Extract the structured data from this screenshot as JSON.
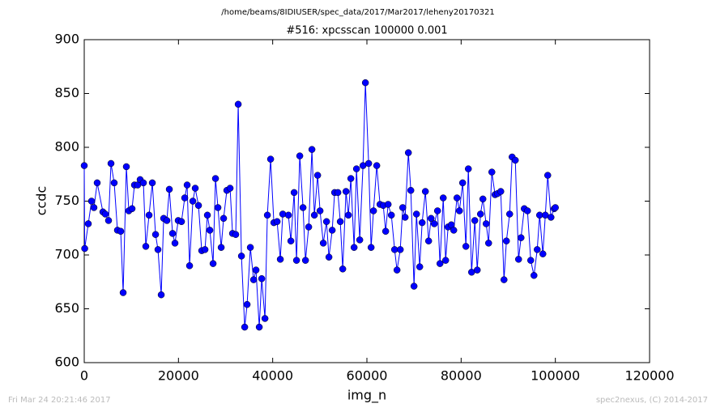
{
  "chart_data": {
    "type": "line",
    "suptitle": "/home/beams/8IDIUSER/spec_data/2017/Mar2017/leheny20170321",
    "title": "#516: xpcsscan 100000 0.001",
    "xlabel": "img_n",
    "ylabel": "ccdc",
    "footer_left": "Fri Mar 24 20:21:46 2017",
    "footer_right": "spec2nexus, (C) 2014-2017",
    "xlim": [
      0,
      120000
    ],
    "xticks": [
      0,
      20000,
      40000,
      60000,
      80000,
      100000,
      120000
    ],
    "ylim": [
      600,
      900
    ],
    "yticks": [
      600,
      650,
      700,
      750,
      800,
      850,
      900
    ],
    "grid": false,
    "x": [
      0,
      100,
      860,
      1550,
      2060,
      2750,
      3960,
      4470,
      5160,
      5680,
      6360,
      7050,
      7740,
      8260,
      8940,
      9460,
      10150,
      10660,
      11350,
      11870,
      12560,
      13070,
      13760,
      14450,
      15140,
      15650,
      16340,
      16860,
      17540,
      18060,
      18750,
      19260,
      19950,
      20640,
      21330,
      21840,
      22360,
      23050,
      23560,
      24250,
      24940,
      25630,
      26140,
      26660,
      27350,
      27860,
      28380,
      29070,
      29580,
      30270,
      30960,
      31480,
      32160,
      32680,
      33370,
      34060,
      34570,
      35260,
      35950,
      36460,
      37150,
      37670,
      38360,
      38870,
      39560,
      40250,
      40940,
      41620,
      42140,
      43340,
      43860,
      44550,
      45060,
      45750,
      46440,
      46960,
      47640,
      48330,
      48850,
      49540,
      50050,
      50740,
      51430,
      51940,
      52630,
      53150,
      53840,
      54350,
      54870,
      55560,
      56070,
      56590,
      57280,
      57790,
      58480,
      59170,
      59680,
      60370,
      60890,
      61400,
      62090,
      62780,
      63470,
      63980,
      64500,
      65190,
      65880,
      66390,
      67080,
      67600,
      68110,
      68800,
      69320,
      70000,
      70520,
      71210,
      71720,
      72410,
      73100,
      73620,
      74300,
      74990,
      75510,
      76200,
      76710,
      77230,
      77920,
      78430,
      79120,
      79640,
      80320,
      81010,
      81530,
      82220,
      82900,
      83420,
      84110,
      84620,
      85310,
      85830,
      86520,
      87200,
      87720,
      88410,
      89100,
      89610,
      90300,
      90820,
      91500,
      92190,
      92710,
      93400,
      94080,
      94770,
      95460,
      96150,
      96660,
      97350,
      97870,
      98380,
      99070,
      99760,
      100000
    ],
    "series": [
      {
        "name": "ccdc",
        "color": "#0000ff",
        "values": [
          783,
          706,
          729,
          750,
          744,
          767,
          740,
          738,
          732,
          785,
          767,
          723,
          722,
          665,
          782,
          741,
          743,
          765,
          765,
          770,
          767,
          708,
          737,
          767,
          719,
          705,
          663,
          734,
          732,
          761,
          720,
          711,
          732,
          731,
          753,
          765,
          690,
          750,
          762,
          746,
          704,
          705,
          737,
          723,
          692,
          771,
          744,
          707,
          734,
          760,
          762,
          720,
          719,
          840,
          699,
          633,
          654,
          707,
          677,
          686,
          633,
          678,
          641,
          737,
          789,
          730,
          731,
          696,
          738,
          737,
          713,
          758,
          695,
          792,
          744,
          695,
          726,
          798,
          737,
          774,
          741,
          711,
          731,
          698,
          723,
          758,
          758,
          731,
          687,
          759,
          737,
          771,
          707,
          780,
          714,
          783,
          860,
          785,
          707,
          741,
          783,
          747,
          746,
          722,
          747,
          737,
          705,
          686,
          705,
          744,
          735,
          795,
          760,
          671,
          738,
          689,
          730,
          759,
          713,
          734,
          729,
          741,
          692,
          753,
          695,
          726,
          728,
          723,
          753,
          741,
          767,
          708,
          780,
          684,
          732,
          686,
          738,
          752,
          729,
          711,
          777,
          756,
          757,
          759,
          677,
          713,
          738,
          791,
          788,
          696,
          716,
          743,
          741,
          695,
          681,
          705,
          737,
          701,
          737,
          774,
          735,
          743,
          744
        ]
      }
    ]
  }
}
